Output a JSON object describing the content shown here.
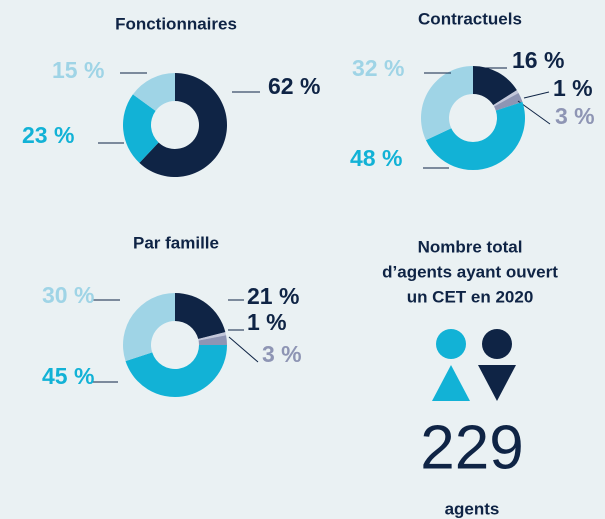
{
  "chart_data": [
    {
      "type": "pie",
      "title": "Fonctionnaires",
      "donut": true,
      "values": [
        62,
        23,
        15
      ],
      "value_labels": [
        "62 %",
        "23 %",
        "15 %"
      ],
      "colors": [
        "#0f2445",
        "#12b2d6",
        "#9fd4e6"
      ],
      "label_colors": [
        "#0f2445",
        "#12b2d6",
        "#9fd4e6"
      ]
    },
    {
      "type": "pie",
      "title": "Contractuels",
      "donut": true,
      "values": [
        16,
        1,
        3,
        48,
        32
      ],
      "value_labels": [
        "16 %",
        "1 %",
        "3 %",
        "48 %",
        "32 %"
      ],
      "colors": [
        "#0f2445",
        "#c3c7da",
        "#8e95b4",
        "#12b2d6",
        "#9fd4e6"
      ],
      "label_colors": [
        "#0f2445",
        "#0f2445",
        "#8e95b4",
        "#12b2d6",
        "#9fd4e6"
      ]
    },
    {
      "type": "pie",
      "title": "Par famille",
      "donut": true,
      "values": [
        21,
        1,
        3,
        45,
        30
      ],
      "value_labels": [
        "21 %",
        "1 %",
        "3 %",
        "45 %",
        "30 %"
      ],
      "colors": [
        "#0f2445",
        "#c3c7da",
        "#8e95b4",
        "#12b2d6",
        "#9fd4e6"
      ],
      "label_colors": [
        "#0f2445",
        "#0f2445",
        "#8e95b4",
        "#12b2d6",
        "#9fd4e6"
      ]
    }
  ],
  "stat": {
    "title_lines": [
      "Nombre total",
      "d’agents ayant ouvert",
      "un CET en 2020"
    ],
    "value": 229,
    "unit": "agents"
  }
}
